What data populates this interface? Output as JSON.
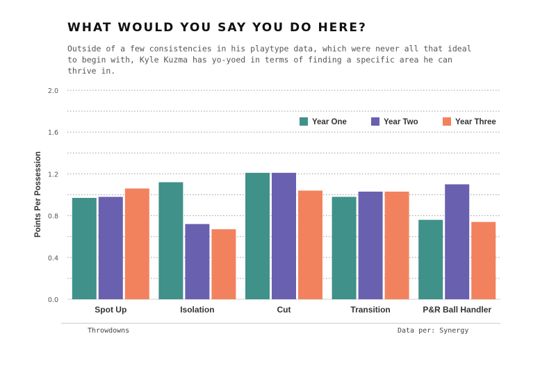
{
  "title": "WHAT WOULD YOU SAY YOU DO HERE?",
  "subtitle": "Outside of a few consistencies in his playtype data, which were never all that ideal to begin with, Kyle Kuzma has yo-yoed in terms of finding a specific area he can thrive in.",
  "footer": {
    "left": "Throwdowns",
    "right": "Data per: Synergy"
  },
  "chart_data": {
    "type": "bar",
    "title": "WHAT WOULD YOU SAY YOU DO HERE?",
    "ylabel": "Points Per Possession",
    "xlabel": "",
    "ylim": [
      0,
      2.0
    ],
    "yticks": [
      "0.0",
      "0.4",
      "0.8",
      "1.2",
      "1.6",
      "2.0"
    ],
    "ytick_values": [
      0,
      0.4,
      0.8,
      1.2,
      1.6,
      2.0
    ],
    "grid": true,
    "legend_position": "top-right",
    "categories": [
      "Spot Up",
      "Isolation",
      "Cut",
      "Transition",
      "P&R Ball Handler"
    ],
    "series": [
      {
        "name": "Year One",
        "color": "#3f9189",
        "values": [
          0.97,
          1.12,
          1.21,
          0.98,
          0.76
        ]
      },
      {
        "name": "Year Two",
        "color": "#6a60b0",
        "values": [
          0.98,
          0.72,
          1.21,
          1.03,
          1.1
        ]
      },
      {
        "name": "Year Three",
        "color": "#f2825e",
        "values": [
          1.06,
          0.67,
          1.04,
          1.03,
          0.74
        ]
      }
    ]
  }
}
